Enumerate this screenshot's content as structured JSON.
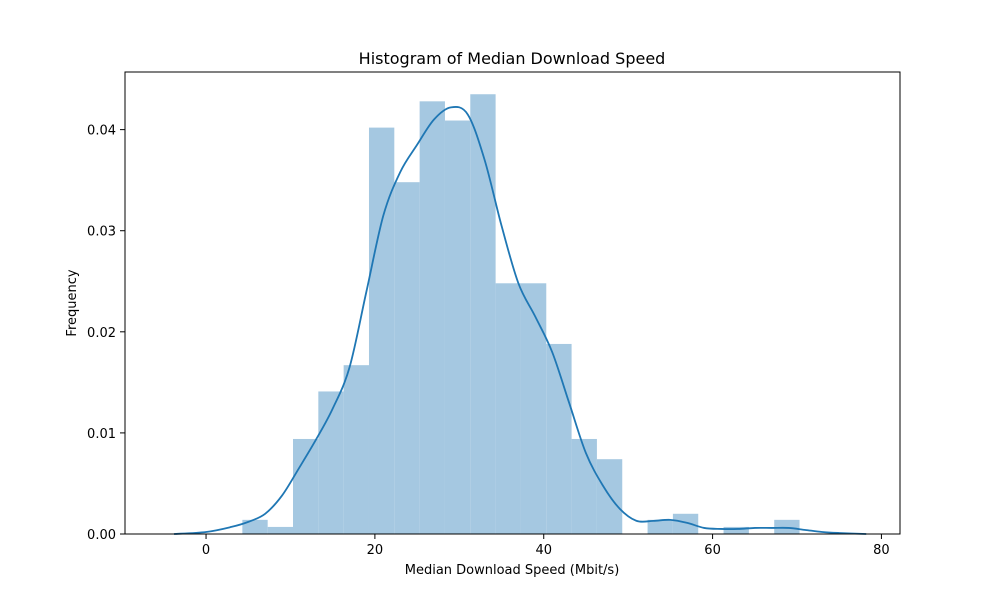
{
  "chart_data": {
    "type": "histogram",
    "title": "Histogram of Median Download Speed",
    "xlabel": "Median Download Speed (Mbit/s)",
    "ylabel": "Frequency",
    "xlim": [
      -9.6,
      82.2
    ],
    "ylim": [
      0,
      0.0457
    ],
    "x_ticks": [
      "0",
      "20",
      "40",
      "60",
      "80"
    ],
    "x_tick_values": [
      0,
      20,
      40,
      60,
      80
    ],
    "y_ticks": [
      "0.00",
      "0.01",
      "0.02",
      "0.03",
      "0.04"
    ],
    "y_tick_values": [
      0,
      0.01,
      0.02,
      0.03,
      0.04
    ],
    "grid": false,
    "bin_width": 3.0,
    "bins": [
      {
        "x0": 4.3,
        "x1": 7.3,
        "value": 0.0014
      },
      {
        "x0": 7.3,
        "x1": 10.3,
        "value": 0.0007
      },
      {
        "x0": 10.3,
        "x1": 13.3,
        "value": 0.0094
      },
      {
        "x0": 13.3,
        "x1": 16.3,
        "value": 0.0141
      },
      {
        "x0": 16.3,
        "x1": 19.3,
        "value": 0.0167
      },
      {
        "x0": 19.3,
        "x1": 22.3,
        "value": 0.0402
      },
      {
        "x0": 22.3,
        "x1": 25.3,
        "value": 0.0348
      },
      {
        "x0": 25.3,
        "x1": 28.3,
        "value": 0.0428
      },
      {
        "x0": 28.3,
        "x1": 31.3,
        "value": 0.0409
      },
      {
        "x0": 31.3,
        "x1": 34.3,
        "value": 0.0435
      },
      {
        "x0": 34.3,
        "x1": 37.3,
        "value": 0.0248
      },
      {
        "x0": 37.3,
        "x1": 40.3,
        "value": 0.0248
      },
      {
        "x0": 40.3,
        "x1": 43.3,
        "value": 0.0188
      },
      {
        "x0": 43.3,
        "x1": 46.3,
        "value": 0.0094
      },
      {
        "x0": 46.3,
        "x1": 49.3,
        "value": 0.0074
      },
      {
        "x0": 49.3,
        "x1": 52.3,
        "value": 0.0
      },
      {
        "x0": 52.3,
        "x1": 55.3,
        "value": 0.0014
      },
      {
        "x0": 55.3,
        "x1": 58.3,
        "value": 0.002
      },
      {
        "x0": 58.3,
        "x1": 61.3,
        "value": 0.0
      },
      {
        "x0": 61.3,
        "x1": 64.3,
        "value": 0.0007
      },
      {
        "x0": 64.3,
        "x1": 67.3,
        "value": 0.0
      },
      {
        "x0": 67.3,
        "x1": 70.3,
        "value": 0.0014
      }
    ],
    "kde": {
      "x": [
        -3.8,
        0,
        3,
        5,
        7,
        9,
        11,
        13,
        15,
        17,
        19,
        21,
        23,
        25,
        27,
        29,
        31,
        33,
        35,
        37,
        39,
        41,
        43,
        45,
        47,
        49,
        51,
        53,
        55,
        57,
        59,
        61,
        63,
        65,
        67,
        69,
        71,
        73,
        75,
        78.2
      ],
      "y": [
        0.0,
        0.0002,
        0.0007,
        0.0012,
        0.002,
        0.0038,
        0.0065,
        0.0093,
        0.0124,
        0.0165,
        0.024,
        0.0315,
        0.0358,
        0.0385,
        0.041,
        0.0422,
        0.0415,
        0.037,
        0.0305,
        0.0248,
        0.0215,
        0.018,
        0.013,
        0.008,
        0.0048,
        0.0025,
        0.0013,
        0.0013,
        0.0014,
        0.0011,
        0.0006,
        0.0005,
        0.0005,
        0.0006,
        0.0006,
        0.0006,
        0.0004,
        0.0002,
        0.0001,
        0.0
      ]
    },
    "bar_color": "#a5c8e1",
    "line_color": "#1f77b4"
  }
}
